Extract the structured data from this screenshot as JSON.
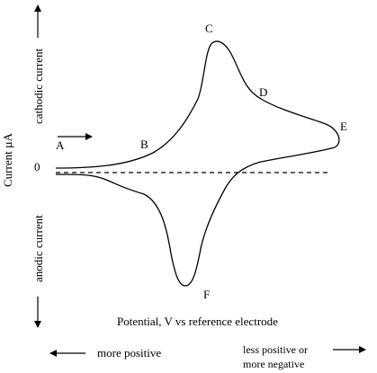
{
  "axes": {
    "y_label": "Current µA",
    "y_upper_label": "cathodic current",
    "y_lower_label": "anodic current",
    "x_label": "Potential, V  vs reference electrode",
    "zero_label": "0"
  },
  "directions": {
    "left_label": "more positive",
    "right_label_line1": "less positive or",
    "right_label_line2": "more negative"
  },
  "points": {
    "A": "A",
    "B": "B",
    "C": "C",
    "D": "D",
    "E": "E",
    "F": "F"
  },
  "colors": {
    "line": "#000000",
    "background": "#ffffff"
  }
}
